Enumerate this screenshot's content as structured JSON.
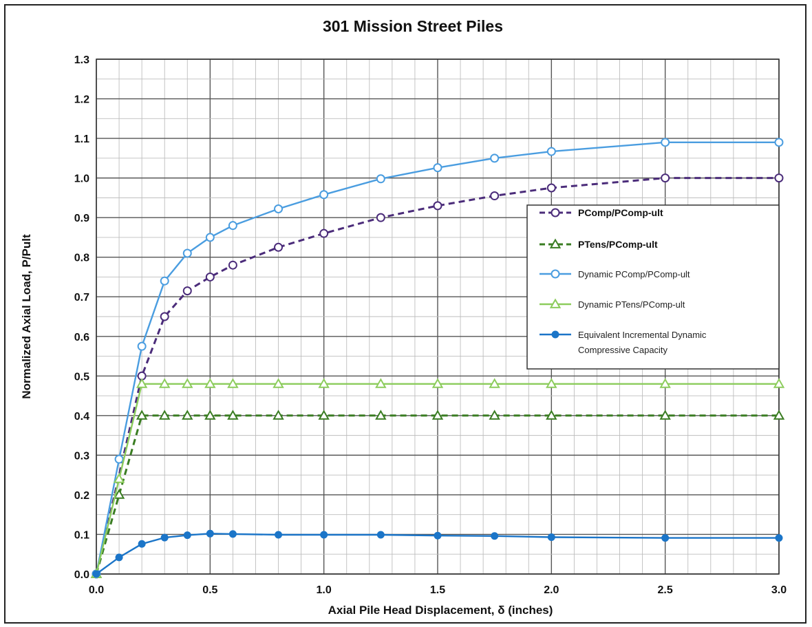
{
  "chart_data": {
    "type": "line",
    "title": "301 Mission Street Piles",
    "xlabel": "Axial Pile Head Displacement, δ (inches)",
    "ylabel": "Normalized Axial Load, P/Pult",
    "xlim": [
      0,
      3.0
    ],
    "ylim": [
      0,
      1.3
    ],
    "x_ticks": [
      "0.0",
      "0.5",
      "1.0",
      "1.5",
      "2.0",
      "2.5",
      "3.0"
    ],
    "y_ticks": [
      "0.0",
      "0.1",
      "0.2",
      "0.3",
      "0.4",
      "0.5",
      "0.6",
      "0.7",
      "0.8",
      "0.9",
      "1.0",
      "1.1",
      "1.2",
      "1.3"
    ],
    "grid": true,
    "legend_position": "right",
    "series": [
      {
        "name": "PComp/PComp-ult",
        "color": "#4b2c7a",
        "line_style": "dashed",
        "marker": "open-circle",
        "x": [
          0,
          0.2,
          0.3,
          0.4,
          0.5,
          0.6,
          0.8,
          1.0,
          1.25,
          1.5,
          1.75,
          2.0,
          2.5,
          3.0
        ],
        "y": [
          0,
          0.5,
          0.65,
          0.715,
          0.75,
          0.78,
          0.825,
          0.86,
          0.9,
          0.93,
          0.955,
          0.975,
          1.0,
          1.0
        ]
      },
      {
        "name": "PTens/PComp-ult",
        "color": "#3a7d22",
        "line_style": "dashed",
        "marker": "open-triangle",
        "x": [
          0,
          0.1,
          0.2,
          0.3,
          0.4,
          0.5,
          0.6,
          0.8,
          1.0,
          1.25,
          1.5,
          1.75,
          2.0,
          2.5,
          3.0
        ],
        "y": [
          0,
          0.2,
          0.4,
          0.4,
          0.4,
          0.4,
          0.4,
          0.4,
          0.4,
          0.4,
          0.4,
          0.4,
          0.4,
          0.4,
          0.4
        ]
      },
      {
        "name": "Dynamic PComp/PComp-ult",
        "color": "#4a9de0",
        "line_style": "solid",
        "marker": "open-circle",
        "x": [
          0,
          0.1,
          0.2,
          0.3,
          0.4,
          0.5,
          0.6,
          0.8,
          1.0,
          1.25,
          1.5,
          1.75,
          2.0,
          2.5,
          3.0
        ],
        "y": [
          0,
          0.29,
          0.575,
          0.74,
          0.81,
          0.85,
          0.88,
          0.922,
          0.958,
          0.998,
          1.026,
          1.05,
          1.067,
          1.09,
          1.09
        ]
      },
      {
        "name": "Dynamic PTens/PComp-ult",
        "color": "#8ccc5c",
        "line_style": "solid",
        "marker": "open-triangle",
        "x": [
          0,
          0.1,
          0.2,
          0.3,
          0.4,
          0.5,
          0.6,
          0.8,
          1.0,
          1.25,
          1.5,
          1.75,
          2.0,
          2.5,
          3.0
        ],
        "y": [
          0,
          0.24,
          0.48,
          0.48,
          0.48,
          0.48,
          0.48,
          0.48,
          0.48,
          0.48,
          0.48,
          0.48,
          0.48,
          0.48,
          0.48
        ]
      },
      {
        "name": "Equivalent Incremental Dynamic Compressive Capacity",
        "color": "#1b75c8",
        "line_style": "solid",
        "marker": "filled-circle",
        "x": [
          0,
          0.1,
          0.2,
          0.3,
          0.4,
          0.5,
          0.6,
          0.8,
          1.0,
          1.25,
          1.5,
          1.75,
          2.0,
          2.5,
          3.0
        ],
        "y": [
          0,
          0.042,
          0.076,
          0.092,
          0.098,
          0.102,
          0.101,
          0.099,
          0.099,
          0.099,
          0.097,
          0.096,
          0.093,
          0.091,
          0.091
        ]
      }
    ]
  },
  "legend_labels": [
    [
      "PComp/PComp-ult"
    ],
    [
      "PTens/PComp-ult"
    ],
    [
      "Dynamic PComp/PComp-ult"
    ],
    [
      "Dynamic PTens/PComp-ult"
    ],
    [
      "Equivalent Incremental Dynamic",
      "Compressive Capacity"
    ]
  ]
}
